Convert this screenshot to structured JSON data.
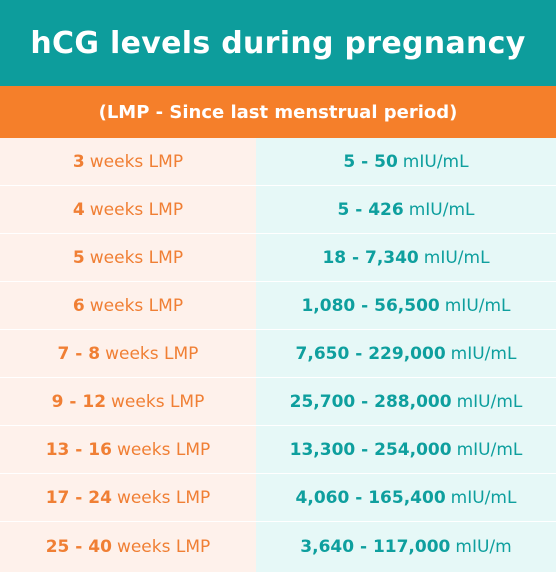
{
  "header": {
    "title": "hCG levels during pregnancy",
    "subtitle": "(LMP - Since last menstrual period)"
  },
  "colors": {
    "teal": "#0d9d9c",
    "orange": "#f57f2a",
    "left_bg": "#fef1eb",
    "right_bg": "#e6f8f7"
  },
  "rows": [
    {
      "weeks_num": "3",
      "weeks_unit": "weeks LMP",
      "range": "5 - 50",
      "range_unit": "mIU/mL"
    },
    {
      "weeks_num": "4",
      "weeks_unit": "weeks LMP",
      "range": "5 - 426",
      "range_unit": "mIU/mL"
    },
    {
      "weeks_num": "5",
      "weeks_unit": "weeks LMP",
      "range": "18 - 7,340",
      "range_unit": "mIU/mL"
    },
    {
      "weeks_num": "6",
      "weeks_unit": "weeks LMP",
      "range": "1,080 - 56,500",
      "range_unit": "mIU/mL"
    },
    {
      "weeks_num": "7 - 8",
      "weeks_unit": "weeks LMP",
      "range": "7,650 - 229,000",
      "range_unit": "mIU/mL"
    },
    {
      "weeks_num": "9 - 12",
      "weeks_unit": "weeks LMP",
      "range": "25,700 - 288,000",
      "range_unit": "mIU/mL"
    },
    {
      "weeks_num": "13 - 16",
      "weeks_unit": "weeks LMP",
      "range": "13,300 - 254,000",
      "range_unit": "mIU/mL"
    },
    {
      "weeks_num": "17 - 24",
      "weeks_unit": "weeks LMP",
      "range": "4,060 - 165,400",
      "range_unit": "mIU/mL"
    },
    {
      "weeks_num": "25 - 40",
      "weeks_unit": "weeks LMP",
      "range": "3,640 - 117,000",
      "range_unit": "mIU/m"
    }
  ]
}
